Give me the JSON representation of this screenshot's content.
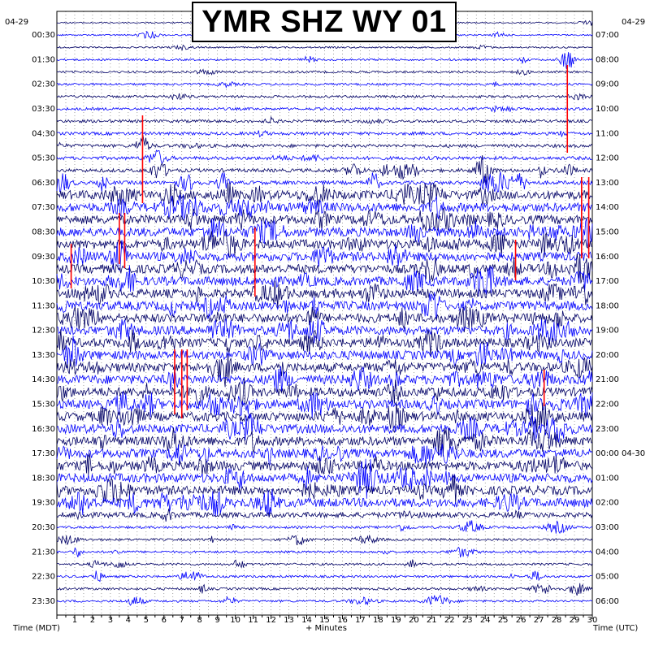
{
  "title": "YMR SHZ WY 01",
  "date_left": "04-29",
  "date_right": "04-29",
  "chart_data": {
    "type": "helicorder",
    "title": "YMR SHZ WY 01",
    "xlabel": "+ Minutes",
    "left_axis_title": "Time (MDT)",
    "right_axis_title": "Time (UTC)",
    "xlim": [
      0,
      30
    ],
    "x_ticks": [
      1,
      2,
      3,
      4,
      5,
      6,
      7,
      8,
      9,
      10,
      11,
      12,
      13,
      14,
      15,
      16,
      17,
      18,
      19,
      20,
      21,
      22,
      23,
      24,
      25,
      26,
      27,
      28,
      29,
      30
    ],
    "left_tick_labels": [
      "00:30",
      "01:30",
      "02:30",
      "03:30",
      "04:30",
      "05:30",
      "06:30",
      "07:30",
      "08:30",
      "09:30",
      "10:30",
      "11:30",
      "12:30",
      "13:30",
      "14:30",
      "15:30",
      "16:30",
      "17:30",
      "18:30",
      "19:30",
      "20:30",
      "21:30",
      "22:30",
      "23:30"
    ],
    "right_tick_labels": [
      "07:00",
      "08:00",
      "09:00",
      "10:00",
      "11:00",
      "12:00",
      "13:00",
      "14:00",
      "15:00",
      "16:00",
      "17:00",
      "18:00",
      "19:00",
      "20:00",
      "21:00",
      "22:00",
      "23:00",
      "00:00 04-30",
      "01:00",
      "02:00",
      "03:00",
      "04:00",
      "05:00",
      "06:00"
    ],
    "trace_count": 48,
    "trace_colors": [
      "#000066",
      "#0000ff"
    ],
    "clip_color": "#ff0000",
    "grid": true,
    "notable_events": [
      {
        "trace": 3,
        "minute": 28.6,
        "label": "clipped spike"
      },
      {
        "trace": 10,
        "minute": 4.8,
        "label": "clipped spike"
      },
      {
        "trace": 29,
        "minute": 7.2,
        "label": "clipped burst"
      }
    ]
  }
}
